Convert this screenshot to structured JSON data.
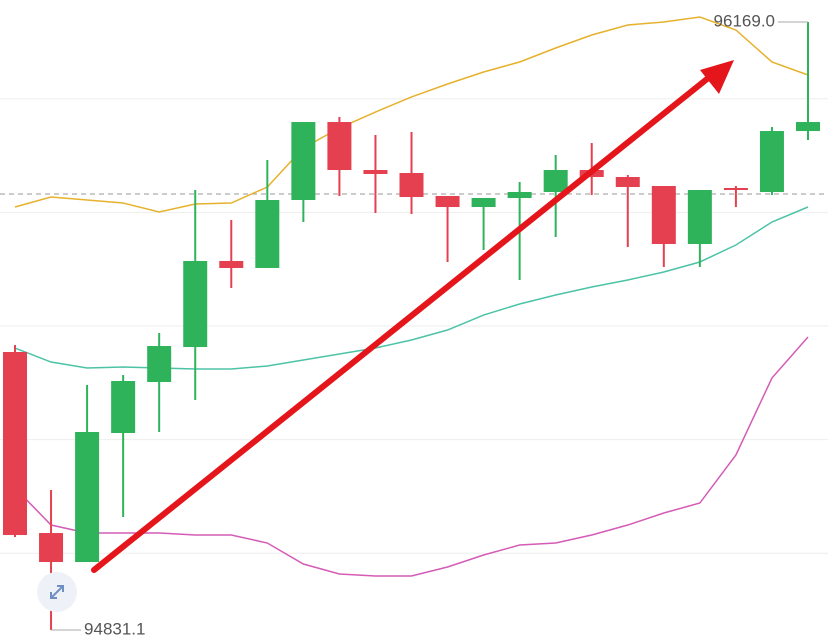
{
  "chart_data": {
    "type": "candlestick",
    "ylim": [
      94809.1,
      96217.4
    ],
    "grid_values": [
      95000,
      95250,
      95500,
      95750,
      96000
    ],
    "up_color": "#2fb35a",
    "down_color": "#e5404f",
    "open": [
      95442.8,
      95044.5,
      94980.7,
      95264.6,
      95376.8,
      95453.8,
      95643.1,
      95627.7,
      95777.3,
      95948.9,
      95843.3,
      95836.7,
      95786.1,
      95761.9,
      95781.7,
      95794.9,
      95843.3,
      95827.9,
      95808.1,
      95680.5,
      95803.7,
      95794.9,
      95929.1
    ],
    "high": [
      95458.2,
      95139.2,
      95370.2,
      95392.2,
      95484.6,
      95799.3,
      95733.3,
      95865.3,
      95948.9,
      95959.9,
      95920.3,
      95926.9,
      95786.1,
      95781.7,
      95816.9,
      95876.3,
      95902.7,
      95832.3,
      95808.1,
      95799.3,
      95808.1,
      95937.9,
      96169.0
    ],
    "low": [
      95035.7,
      94831.1,
      94980.7,
      95079.7,
      95266.8,
      95337.2,
      95583.7,
      95627.7,
      95728.9,
      95786.1,
      95748.7,
      95746.5,
      95640.9,
      95667.3,
      95601.3,
      95695.9,
      95788.3,
      95673.9,
      95629.9,
      95629.9,
      95761.9,
      95788.3,
      95909.3
    ],
    "close": [
      95040.1,
      94980.7,
      95266.8,
      95379.0,
      95456.0,
      95643.1,
      95627.7,
      95777.3,
      95948.9,
      95843.3,
      95834.5,
      95783.9,
      95761.9,
      95781.7,
      95794.9,
      95843.3,
      95827.9,
      95805.9,
      95680.5,
      95799.3,
      95799.3,
      95929.1,
      95948.9
    ],
    "overlays": [
      {
        "color": "#e6b12c",
        "values": [
          95761.9,
          95783.9,
          95777.3,
          95770.7,
          95750.9,
          95768.5,
          95770.7,
          95805.9,
          95891.7,
          95935.7,
          95970.9,
          96004.0,
          96032.6,
          96059.0,
          96081.0,
          96111.8,
          96140.4,
          96162.4,
          96169.0,
          96180.0,
          96151.4,
          96081.0,
          96052.4
        ]
      },
      {
        "color": "#4cc3a6",
        "values": [
          95451.6,
          95420.8,
          95407.6,
          95409.8,
          95407.6,
          95405.4,
          95405.4,
          95412.0,
          95425.2,
          95438.4,
          95451.6,
          95469.2,
          95491.2,
          95524.2,
          95548.4,
          95568.3,
          95585.9,
          95601.3,
          95618.9,
          95640.9,
          95678.3,
          95728.9,
          95761.9
        ]
      },
      {
        "color": "#d45bb6",
        "values": [
          95143.6,
          95062.1,
          95044.5,
          95044.5,
          95044.5,
          95040.1,
          95040.1,
          95022.5,
          94976.3,
          94954.3,
          94949.9,
          94949.9,
          94969.7,
          94996.1,
          95018.1,
          95022.5,
          95040.1,
          95062.1,
          95088.5,
          95110.5,
          95216.2,
          95385.6,
          95475.8
        ]
      }
    ],
    "reference_line": 95790.5,
    "annotations": [
      {
        "value": 96169.0,
        "label": "96169.0"
      },
      {
        "value": 94831.1,
        "label": "94831.1"
      }
    ]
  }
}
